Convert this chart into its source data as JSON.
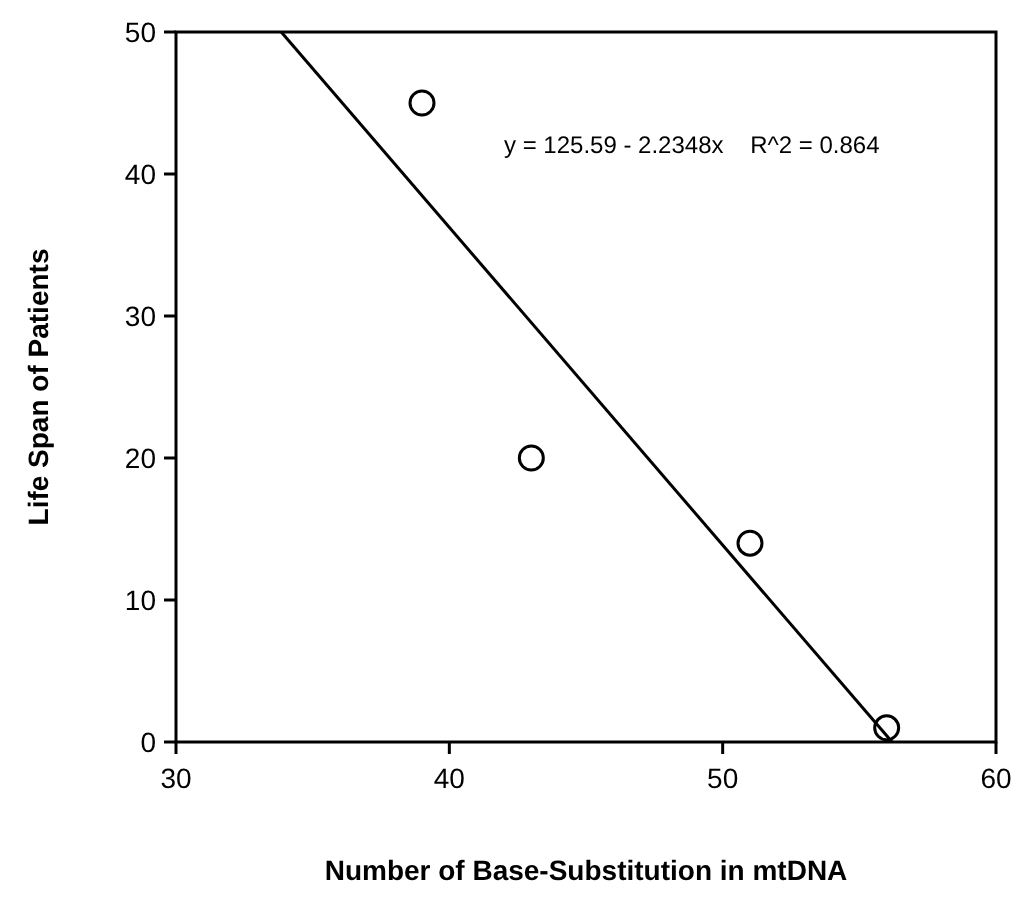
{
  "chart_data": {
    "type": "scatter",
    "xlabel": "Number of Base-Substitution in mtDNA",
    "ylabel": "Life Span of Patients",
    "xlim": [
      30,
      60
    ],
    "xticks": [
      30,
      40,
      50,
      60
    ],
    "ylim": [
      0,
      50
    ],
    "yticks": [
      0,
      10,
      20,
      30,
      40,
      50
    ],
    "grid": false,
    "annotations": [
      "y = 125.59 - 2.2348x    R^2 = 0.864"
    ],
    "series": [
      {
        "color": "#000000",
        "marker": "circle",
        "x": [
          39,
          43,
          51,
          56
        ],
        "values": [
          45,
          20,
          14,
          1
        ]
      },
      {
        "type": "line",
        "color": "#000000",
        "marker": "none",
        "line_style": "solid",
        "x": [
          33.85,
          56.2
        ],
        "values": [
          50,
          0
        ]
      }
    ]
  }
}
